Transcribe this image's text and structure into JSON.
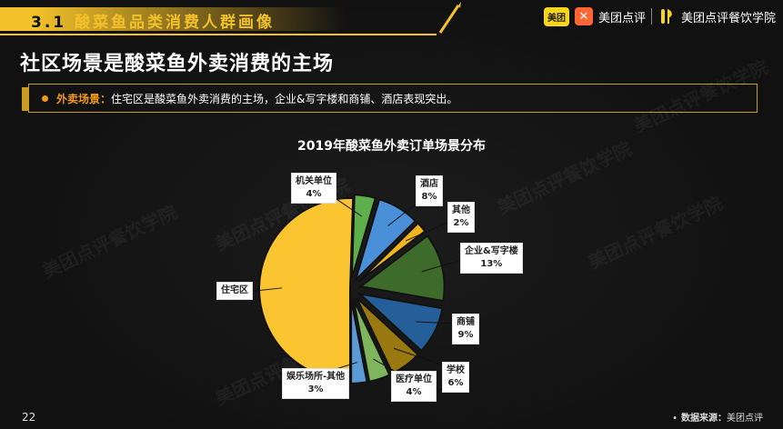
{
  "header": {
    "section_number": "3.1",
    "section_title": "酸菜鱼品类消费人群画像",
    "logos": {
      "meituan_badge": "美团",
      "dianping_name": "美团点评",
      "academy_name": "美团点评餐饮学院"
    }
  },
  "slide_title": "社区场景是酸菜鱼外卖消费的主场",
  "summary": {
    "key": "外卖场景：",
    "text": "住宅区是酸菜鱼外卖消费的主场，企业&写字楼和商铺、酒店表现突出。"
  },
  "watermark_text": "美团点评餐饮学院",
  "footer": {
    "page_number": "22",
    "source_key": "数据来源：",
    "source_value": "美团点评"
  },
  "colors": {
    "accent": "#f3c12a",
    "orange": "#f39a1c",
    "background": "#121212"
  },
  "chart_data": {
    "type": "pie",
    "title": "2019年酸菜鱼外卖订单场景分布",
    "slices": [
      {
        "name": "住宅区",
        "value": 50,
        "label": "",
        "color": "#fbc531"
      },
      {
        "name": "机关单位",
        "value": 4,
        "label": "4%",
        "color": "#5fb04c"
      },
      {
        "name": "酒店",
        "value": 8,
        "label": "8%",
        "color": "#4a90d9"
      },
      {
        "name": "其他",
        "value": 2,
        "label": "2%",
        "color": "#f2b61c"
      },
      {
        "name": "企业&写字楼",
        "value": 13,
        "label": "13%",
        "color": "#3d6b2a"
      },
      {
        "name": "商铺",
        "value": 9,
        "label": "9%",
        "color": "#255f9a"
      },
      {
        "name": "学校",
        "value": 6,
        "label": "6%",
        "color": "#9a7a10"
      },
      {
        "name": "医疗单位",
        "value": 4,
        "label": "4%",
        "color": "#7fb55c"
      },
      {
        "name": "娱乐场所-其他",
        "value": 3,
        "label": "3%",
        "color": "#5b9bd5"
      }
    ]
  }
}
